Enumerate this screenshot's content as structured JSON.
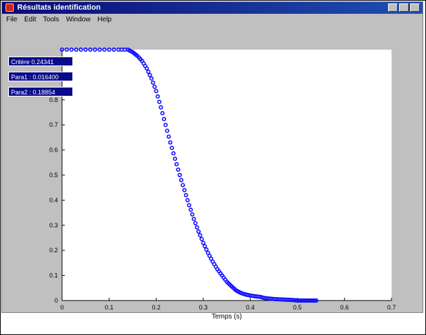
{
  "window": {
    "title": "Résultats identification",
    "menu": [
      "File",
      "Edit",
      "Tools",
      "Window",
      "Help"
    ]
  },
  "info_labels": [
    "Critère 0.24341",
    "Para1 : 0.016400",
    "Para2 : 0.18854"
  ],
  "colors": {
    "series": "#1010ff",
    "title_bar": "#0a0a78",
    "window_bg": "#c0c0c0"
  },
  "chart_data": {
    "type": "scatter",
    "xlabel": "Temps (s)",
    "ylabel": "",
    "title": "",
    "xlim": [
      0,
      0.7
    ],
    "ylim": [
      0,
      1
    ],
    "x_ticks": [
      "0",
      "0.1",
      "0.2",
      "0.3",
      "0.4",
      "0.5",
      "0.6",
      "0.7"
    ],
    "y_ticks": [
      "0",
      "0.1",
      "0.2",
      "0.3",
      "0.4",
      "0.5",
      "0.6",
      "0.7",
      "0.8"
    ],
    "series": [
      {
        "values": [
          [
            0.0,
            1.0
          ],
          [
            0.03,
            1.0
          ],
          [
            0.06,
            1.0
          ],
          [
            0.09,
            1.0
          ],
          [
            0.12,
            1.0
          ],
          [
            0.14,
            1.0
          ],
          [
            0.15,
            0.99
          ],
          [
            0.16,
            0.975
          ],
          [
            0.17,
            0.955
          ],
          [
            0.18,
            0.925
          ],
          [
            0.19,
            0.885
          ],
          [
            0.2,
            0.835
          ],
          [
            0.21,
            0.77
          ],
          [
            0.22,
            0.7
          ],
          [
            0.23,
            0.63
          ],
          [
            0.24,
            0.565
          ],
          [
            0.25,
            0.5
          ],
          [
            0.26,
            0.44
          ],
          [
            0.27,
            0.38
          ],
          [
            0.28,
            0.325
          ],
          [
            0.29,
            0.275
          ],
          [
            0.3,
            0.23
          ],
          [
            0.31,
            0.19
          ],
          [
            0.32,
            0.155
          ],
          [
            0.33,
            0.125
          ],
          [
            0.34,
            0.1
          ],
          [
            0.35,
            0.075
          ],
          [
            0.36,
            0.057
          ],
          [
            0.37,
            0.04
          ],
          [
            0.38,
            0.03
          ],
          [
            0.39,
            0.024
          ],
          [
            0.4,
            0.02
          ],
          [
            0.41,
            0.017
          ],
          [
            0.42,
            0.015
          ],
          [
            0.43,
            0.01
          ],
          [
            0.44,
            0.008
          ],
          [
            0.45,
            0.006
          ],
          [
            0.46,
            0.005
          ],
          [
            0.47,
            0.004
          ],
          [
            0.48,
            0.003
          ],
          [
            0.49,
            0.002
          ],
          [
            0.5,
            0.0
          ],
          [
            0.51,
            0.0
          ],
          [
            0.52,
            0.0
          ],
          [
            0.53,
            0.0
          ],
          [
            0.54,
            0.0
          ]
        ]
      }
    ]
  }
}
